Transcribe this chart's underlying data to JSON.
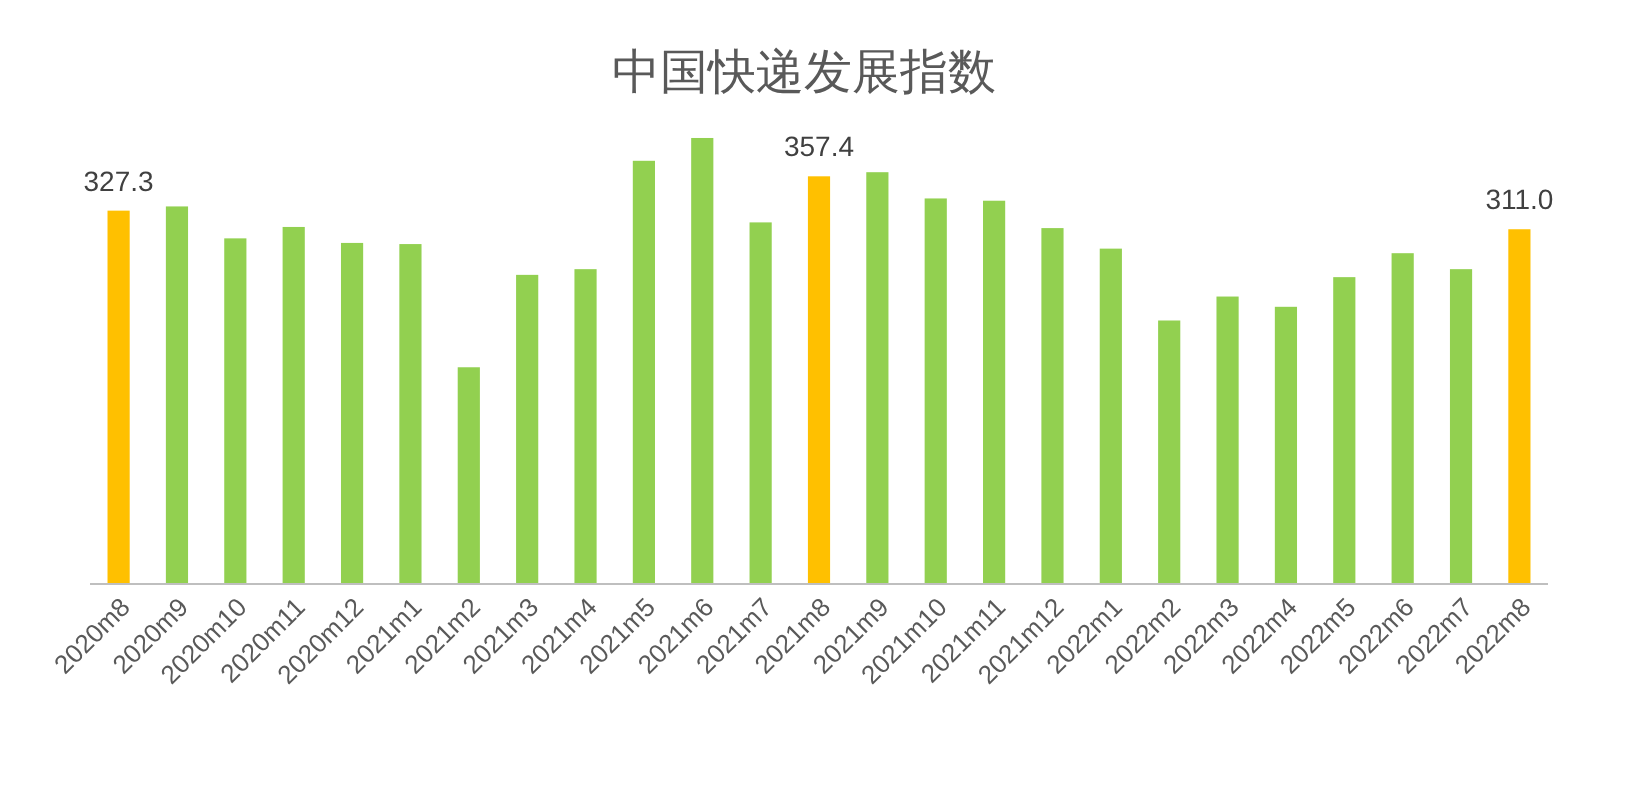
{
  "chart_data": {
    "type": "bar",
    "title": "中国快递发展指数",
    "categories": [
      "2020m8",
      "2020m9",
      "2020m10",
      "2020m11",
      "2020m12",
      "2021m1",
      "2021m2",
      "2021m3",
      "2021m4",
      "2021m5",
      "2021m6",
      "2021m7",
      "2021m8",
      "2021m9",
      "2021m10",
      "2021m11",
      "2021m12",
      "2022m1",
      "2022m2",
      "2022m3",
      "2022m4",
      "2022m5",
      "2022m6",
      "2022m7",
      "2022m8"
    ],
    "values": [
      327.3,
      331,
      303,
      313,
      299,
      298,
      190,
      271,
      276,
      371,
      391,
      317,
      357.4,
      361,
      338,
      336,
      312,
      294,
      231,
      252,
      243,
      269,
      290,
      276,
      311.0
    ],
    "value_labels": [
      "327.3",
      null,
      null,
      null,
      null,
      null,
      null,
      null,
      null,
      null,
      null,
      null,
      "357.4",
      null,
      null,
      null,
      null,
      null,
      null,
      null,
      null,
      null,
      null,
      null,
      "311.0"
    ],
    "colors": [
      "#ffc000",
      "#92d050",
      "#92d050",
      "#92d050",
      "#92d050",
      "#92d050",
      "#92d050",
      "#92d050",
      "#92d050",
      "#92d050",
      "#92d050",
      "#92d050",
      "#ffc000",
      "#92d050",
      "#92d050",
      "#92d050",
      "#92d050",
      "#92d050",
      "#92d050",
      "#92d050",
      "#92d050",
      "#92d050",
      "#92d050",
      "#92d050",
      "#ffc000"
    ],
    "tick_labels": "x"
  }
}
